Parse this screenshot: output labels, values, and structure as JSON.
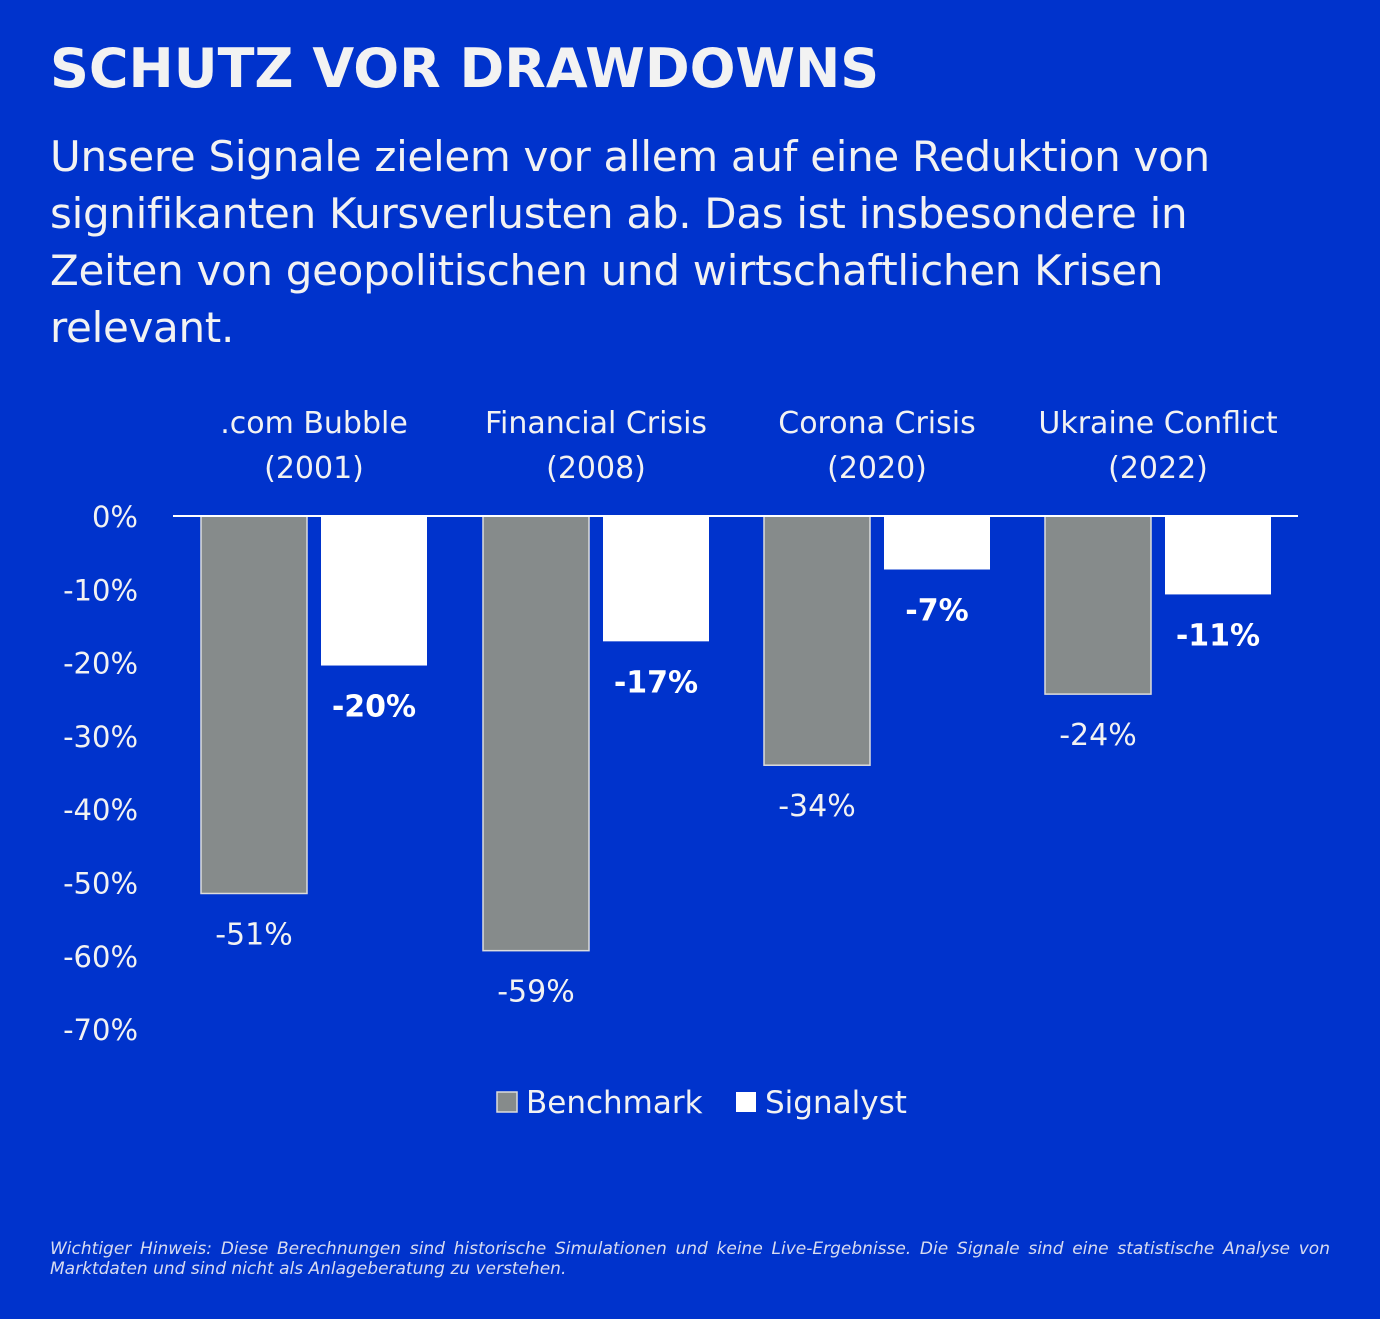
{
  "title": "SCHUTZ VOR DRAWDOWNS",
  "subtitle": "Unsere Signale zielem vor allem auf eine Reduktion von signifikanten Kursverlusten ab. Das ist insbesondere in Zeiten von geopolitischen und wirtschaftlichen Krisen relevant.",
  "disclaimer": "Wichtiger Hinweis: Diese Berechnungen sind historische Simulationen und keine Live-Ergebnisse. Die Signale sind eine statistische Analyse von Marktdaten und sind nicht als Anlageberatung zu verstehen.",
  "colors": {
    "background": "#0033cc",
    "benchmark": "#868b8b",
    "signalyst": "#ffffff",
    "text": "#f2f2f2"
  },
  "chart_data": {
    "type": "bar",
    "categories": [
      [
        ".com Bubble",
        "(2001)"
      ],
      [
        "Financial Crisis",
        "(2008)"
      ],
      [
        "Corona Crisis",
        "(2020)"
      ],
      [
        "Ukraine Conflict",
        "(2022)"
      ]
    ],
    "series": [
      {
        "name": "Benchmark",
        "values": [
          -51.5,
          -59.3,
          -34,
          -24.3
        ],
        "labels": [
          "-51%",
          "-59%",
          "-34%",
          "-24%"
        ]
      },
      {
        "name": "Signalyst",
        "values": [
          -20.4,
          -17.1,
          -7.3,
          -10.7
        ],
        "labels": [
          "-20%",
          "-17%",
          "-7%",
          "-11%"
        ]
      }
    ],
    "yticks": [
      0,
      -10,
      -20,
      -30,
      -40,
      -50,
      -60,
      -70
    ],
    "ytick_labels": [
      "0%",
      "-10%",
      "-20%",
      "-30%",
      "-40%",
      "-50%",
      "-60%",
      "-70%"
    ],
    "ylim": [
      -70,
      0
    ],
    "legend": [
      "Benchmark",
      "Signalyst"
    ],
    "legend_position": "bottom-center"
  }
}
